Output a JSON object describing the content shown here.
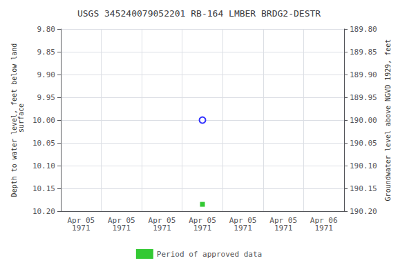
{
  "chart_data": {
    "type": "scatter",
    "title": "USGS 345240079052201 RB-164 LMBER BRDG2-DESTR",
    "y_label": "Depth to water level, feet below land\n surface",
    "y2_label": "Groundwater level above NGVD 1929, feet",
    "categories": [
      "Apr 05\n1971",
      "Apr 05\n1971",
      "Apr 05\n1971",
      "Apr 05\n1971",
      "Apr 05\n1971",
      "Apr 05\n1971",
      "Apr 06\n1971"
    ],
    "series": [
      {
        "color": "blue",
        "marker": "open_circle",
        "values": [
          null,
          null,
          null,
          10.0,
          null,
          null,
          null
        ]
      },
      {
        "name": "Period of approved data",
        "color": "#00bb00",
        "marker": "square",
        "values": [
          null,
          null,
          null,
          10.185,
          null,
          null,
          null
        ]
      }
    ],
    "ylim": [
      10.2,
      9.8
    ],
    "yticks": [
      {
        "value": 9.8,
        "label": "9.80"
      },
      {
        "value": 9.85,
        "label": "9.85"
      },
      {
        "value": 9.9,
        "label": "9.90"
      },
      {
        "value": 9.95,
        "label": "9.95"
      },
      {
        "value": 10.0,
        "label": "10.00"
      },
      {
        "value": 10.05,
        "label": "10.05"
      },
      {
        "value": 10.1,
        "label": "10.10"
      },
      {
        "value": 10.15,
        "label": "10.15"
      },
      {
        "value": 10.2,
        "label": "10.20"
      }
    ],
    "y2lim": [
      190.2,
      189.8
    ],
    "y2ticks": [
      {
        "value": 190.2,
        "label": "190.20"
      },
      {
        "value": 190.15,
        "label": "190.15"
      },
      {
        "value": 190.1,
        "label": "190.10"
      },
      {
        "value": 190.05,
        "label": "190.05"
      },
      {
        "value": 190.0,
        "label": "190.00"
      },
      {
        "value": 189.95,
        "label": "189.95"
      },
      {
        "value": 189.9,
        "label": "189.90"
      },
      {
        "value": 189.85,
        "label": "189.85"
      },
      {
        "value": 189.8,
        "label": "189.80"
      }
    ],
    "grid": true,
    "legend": "bottom"
  }
}
